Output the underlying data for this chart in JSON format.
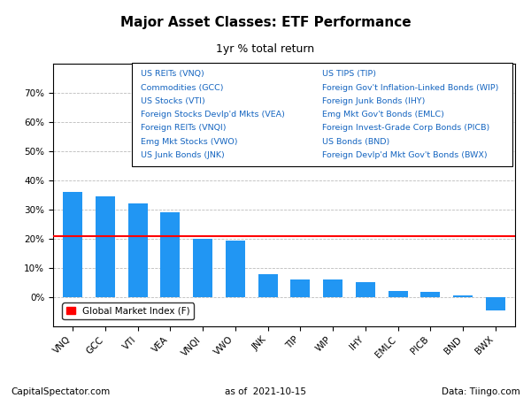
{
  "title": "Major Asset Classes: ETF Performance",
  "subtitle": "1yr % total return",
  "categories": [
    "VNQ",
    "GCC",
    "VTI",
    "VEA",
    "VNQI",
    "VWO",
    "JNK",
    "TIP",
    "WIP",
    "IHY",
    "EMLC",
    "PICB",
    "BND",
    "BWX"
  ],
  "values": [
    36.0,
    34.5,
    32.0,
    29.0,
    20.0,
    19.5,
    8.0,
    6.0,
    6.0,
    5.2,
    2.2,
    1.8,
    0.5,
    -4.5
  ],
  "bar_color": "#2196F3",
  "reference_line_value": 21.0,
  "reference_line_color": "#FF0000",
  "reference_line_label": "Global Market Index (F)",
  "legend_left": [
    "US REITs (VNQ)",
    "Commodities (GCC)",
    "US Stocks (VTI)",
    "Foreign Stocks Devlp'd Mkts (VEA)",
    "Foreign REITs (VNQI)",
    "Emg Mkt Stocks (VWO)",
    "US Junk Bonds (JNK)"
  ],
  "legend_right": [
    "US TIPS (TIP)",
    "Foreign Gov't Inflation-Linked Bonds (WIP)",
    "Foreign Junk Bonds (IHY)",
    "Emg Mkt Gov't Bonds (EMLC)",
    "Foreign Invest-Grade Corp Bonds (PICB)",
    "US Bonds (BND)",
    "Foreign Devlp'd Mkt Gov't Bonds (BWX)"
  ],
  "footer_left": "CapitalSpectator.com",
  "footer_center": "as of  2021-10-15",
  "footer_right": "Data: Tiingo.com",
  "ylim": [
    -10,
    80
  ],
  "yticks": [
    0,
    10,
    20,
    30,
    40,
    50,
    60,
    70
  ],
  "ytick_labels": [
    "0%",
    "10%",
    "20%",
    "30%",
    "40%",
    "50%",
    "60%",
    "70%"
  ],
  "background_color": "#FFFFFF",
  "grid_color": "#BBBBBB",
  "text_color": "#000000",
  "legend_text_color": "#1565C0",
  "title_fontsize": 11,
  "subtitle_fontsize": 9,
  "tick_label_fontsize": 7.5,
  "legend_fontsize": 6.8,
  "footer_fontsize": 7.5
}
